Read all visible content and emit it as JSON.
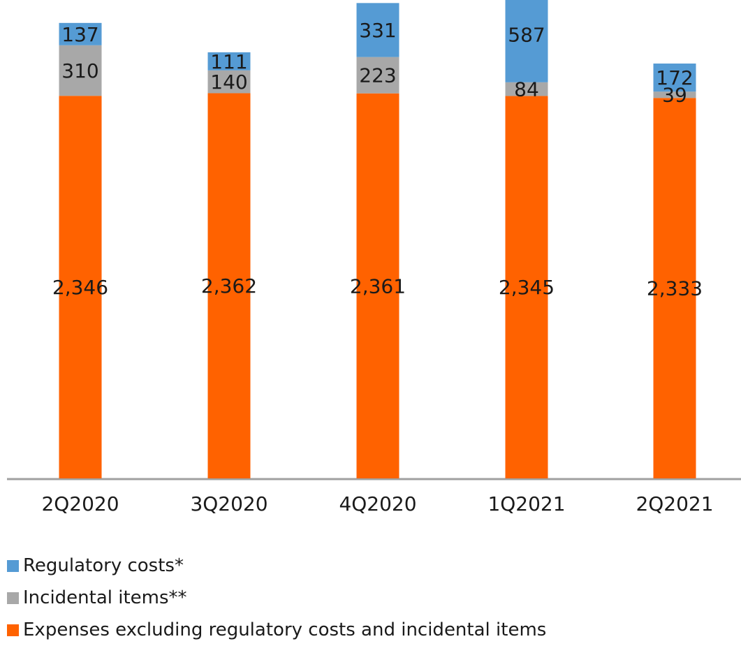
{
  "chart_data": {
    "type": "bar",
    "stacked": true,
    "categories": [
      "2Q2020",
      "3Q2020",
      "4Q2020",
      "1Q2021",
      "2Q2021"
    ],
    "series": [
      {
        "name": "Expenses excluding regulatory costs and incidental items",
        "color": "#FF6200",
        "values": [
          2346,
          2362,
          2361,
          2345,
          2333
        ],
        "labels": [
          "2,346",
          "2,362",
          "2,361",
          "2,345",
          "2,333"
        ]
      },
      {
        "name": "Incidental items**",
        "color": "#A8A8A8",
        "values": [
          310,
          140,
          223,
          84,
          39
        ],
        "labels": [
          "310",
          "140",
          "223",
          "84",
          "39"
        ]
      },
      {
        "name": "Regulatory costs*",
        "color": "#559BD4",
        "values": [
          137,
          111,
          331,
          587,
          172
        ],
        "labels": [
          "137",
          "111",
          "331",
          "587",
          "172"
        ]
      }
    ],
    "legend_order": [
      "Regulatory costs*",
      "Incidental items**",
      "Expenses excluding regulatory costs and incidental items"
    ],
    "legend_position": "bottom-left",
    "grid": false,
    "ylim": [
      0,
      3000
    ]
  }
}
